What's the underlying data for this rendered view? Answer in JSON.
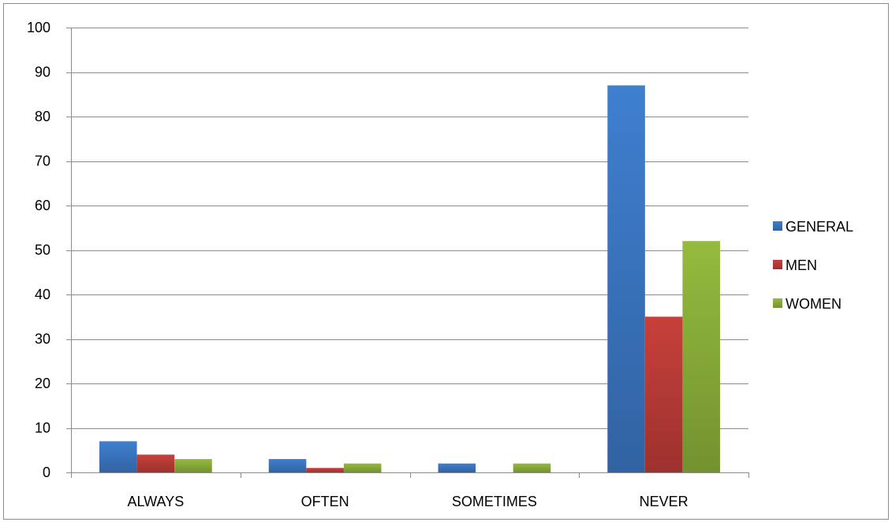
{
  "chart_data": {
    "type": "bar",
    "categories": [
      "ALWAYS",
      "OFTEN",
      "SOMETIMES",
      "NEVER"
    ],
    "series": [
      {
        "name": "GENERAL",
        "values": [
          7,
          3,
          2,
          87
        ],
        "color": "#3f7fd0"
      },
      {
        "name": "MEN",
        "values": [
          4,
          1,
          0,
          35
        ],
        "color": "#c8403b"
      },
      {
        "name": "WOMEN",
        "values": [
          3,
          2,
          2,
          52
        ],
        "color": "#94bb3e"
      }
    ],
    "title": "",
    "xlabel": "",
    "ylabel": "",
    "ylim": [
      0,
      100
    ],
    "yticks": [
      0,
      10,
      20,
      30,
      40,
      50,
      60,
      70,
      80,
      90,
      100
    ],
    "grid": true,
    "legend_position": "right"
  }
}
